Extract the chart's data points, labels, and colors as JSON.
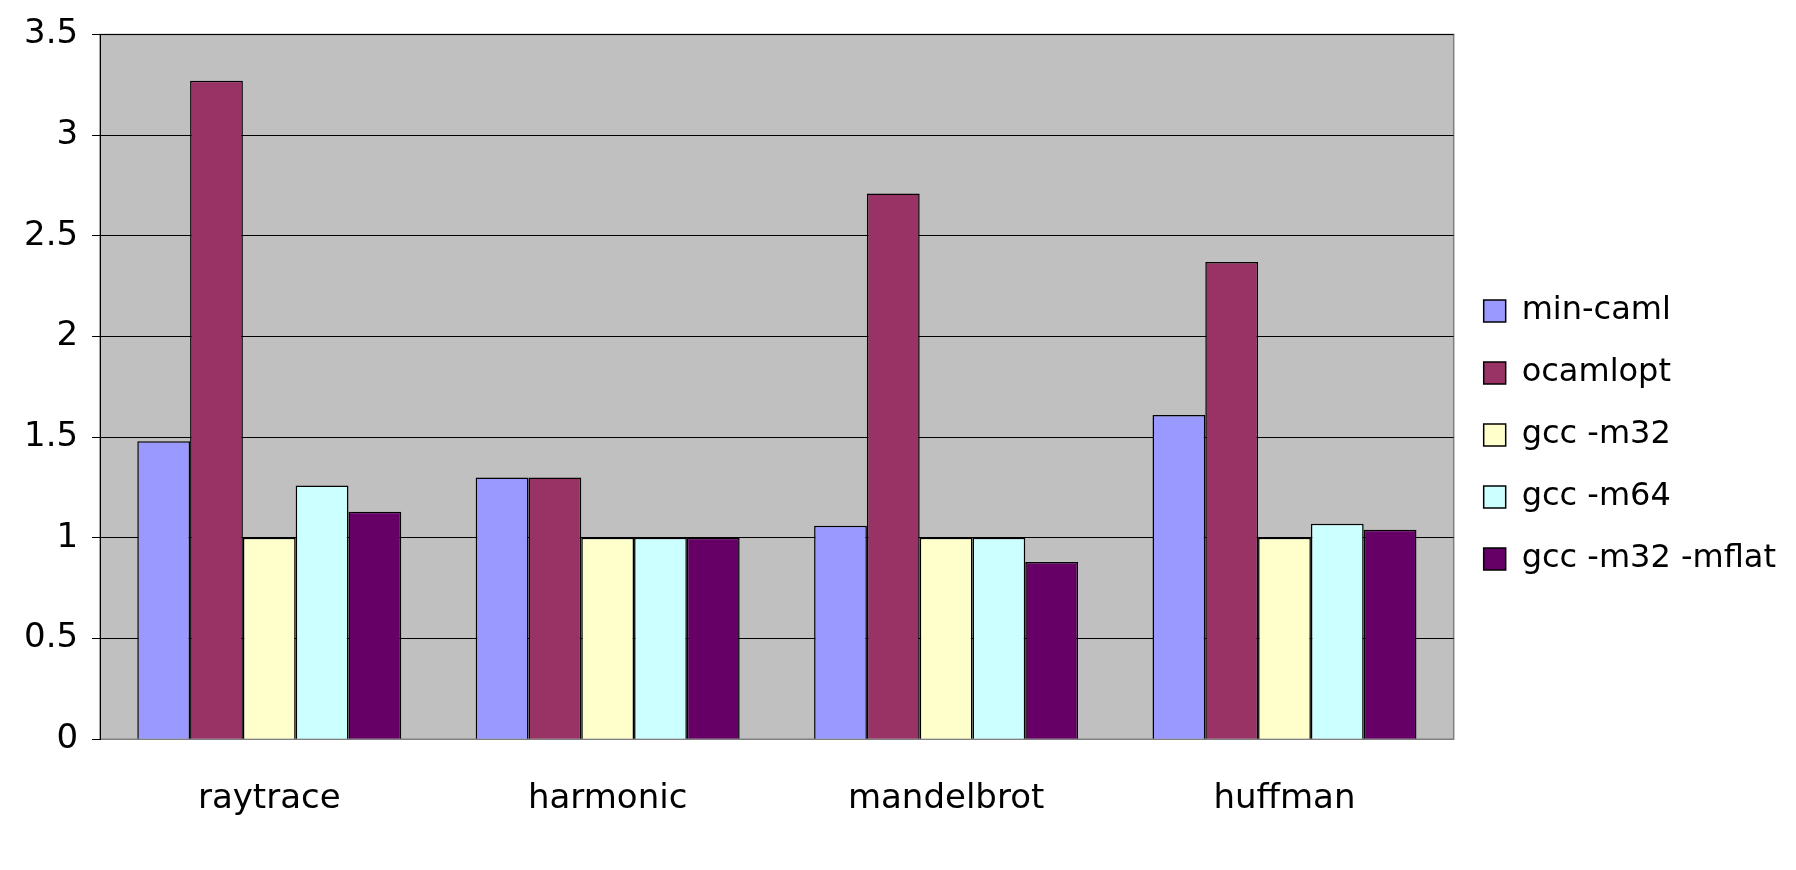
{
  "chart_data": {
    "type": "bar",
    "categories": [
      "raytrace",
      "harmonic",
      "mandelbrot",
      "huffman"
    ],
    "series": [
      {
        "name": "min-caml",
        "color": "#9999ff",
        "values": [
          1.48,
          1.3,
          1.06,
          1.61
        ]
      },
      {
        "name": "ocamlopt",
        "color": "#993366",
        "values": [
          3.27,
          1.3,
          2.71,
          2.37
        ]
      },
      {
        "name": "gcc -m32",
        "color": "#ffffcc",
        "values": [
          1.0,
          1.0,
          1.0,
          1.0
        ]
      },
      {
        "name": "gcc -m64",
        "color": "#ccffff",
        "values": [
          1.26,
          1.0,
          1.0,
          1.07
        ]
      },
      {
        "name": "gcc -m32 -mflat",
        "color": "#660066",
        "values": [
          1.13,
          1.0,
          0.88,
          1.04
        ]
      }
    ],
    "ylim": [
      0,
      3.5
    ],
    "yticks": [
      0,
      0.5,
      1,
      1.5,
      2,
      2.5,
      3,
      3.5
    ],
    "grid": "y",
    "legend": "right"
  }
}
